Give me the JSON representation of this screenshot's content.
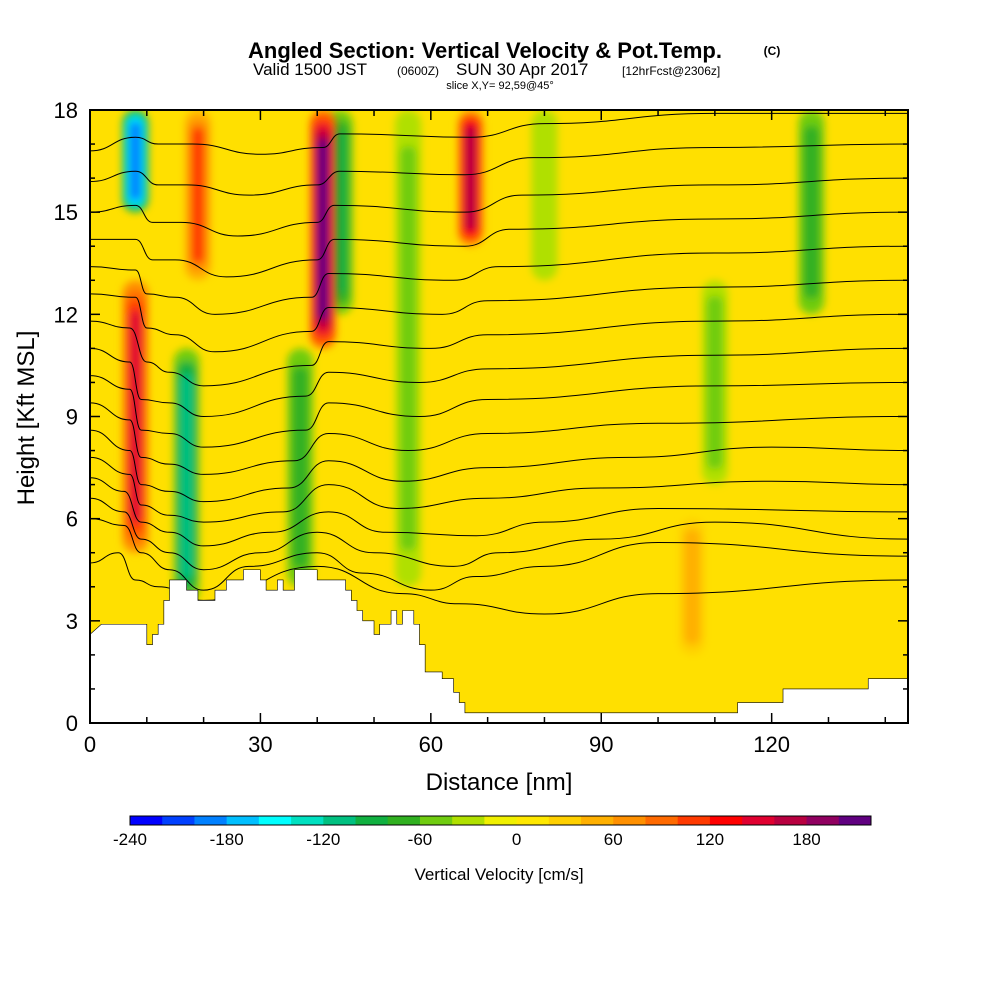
{
  "chart_data": {
    "type": "heatmap",
    "title": "Angled Section: Vertical Velocity & Pot.Temp.",
    "title_unit": "(C)",
    "subtitle_parts": [
      "Valid 1500 JST",
      "(0600Z)",
      "SUN 30 Apr 2017",
      "[12hrFcst@2306z]"
    ],
    "slice_text": "slice X,Y= 92,59@45°",
    "xlabel": "Distance [nm]",
    "ylabel": "Height [Kft MSL]",
    "xlim": [
      0,
      144
    ],
    "ylim": [
      0,
      18
    ],
    "x_ticks": [
      0,
      30,
      60,
      90,
      120
    ],
    "y_ticks": [
      0,
      3,
      6,
      9,
      12,
      15,
      18
    ],
    "colorbar": {
      "label": "Vertical Velocity [cm/s]",
      "ticks": [
        -240,
        -180,
        -120,
        -60,
        0,
        60,
        120,
        180
      ],
      "range": [
        -240,
        220
      ],
      "step": 20,
      "colors": [
        "#0000ff",
        "#0040ff",
        "#0080ff",
        "#00bfff",
        "#00ffff",
        "#00e0c0",
        "#00c080",
        "#10b040",
        "#30b020",
        "#70cc10",
        "#b0e000",
        "#f0f000",
        "#ffe800",
        "#ffd000",
        "#ffb000",
        "#ff9000",
        "#ff6a00",
        "#ff3a00",
        "#ff0000",
        "#e00030",
        "#b80040",
        "#900060",
        "#600080"
      ]
    },
    "updrafts": [
      {
        "x": 8,
        "y_min": 5,
        "y_max": 13,
        "value": 140
      },
      {
        "x": 19,
        "y_min": 13,
        "y_max": 18,
        "value": 100
      },
      {
        "x": 41,
        "y_min": 11,
        "y_max": 18,
        "value": 200
      },
      {
        "x": 67,
        "y_min": 14,
        "y_max": 18,
        "value": 160
      },
      {
        "x": 106,
        "y_min": 2,
        "y_max": 6,
        "value": 50
      }
    ],
    "downdrafts": [
      {
        "x": 8,
        "y_min": 15,
        "y_max": 18,
        "value": -200
      },
      {
        "x": 17,
        "y_min": 3.5,
        "y_max": 11,
        "value": -110
      },
      {
        "x": 37,
        "y_min": 4,
        "y_max": 11,
        "value": -70
      },
      {
        "x": 44,
        "y_min": 12,
        "y_max": 18,
        "value": -90
      },
      {
        "x": 56,
        "y_min": 4,
        "y_max": 18,
        "value": -60
      },
      {
        "x": 80,
        "y_min": 13,
        "y_max": 18,
        "value": -40
      },
      {
        "x": 110,
        "y_min": 7,
        "y_max": 13,
        "value": -50
      },
      {
        "x": 127,
        "y_min": 12,
        "y_max": 18,
        "value": -80
      }
    ],
    "terrain": [
      [
        0,
        2.6
      ],
      [
        2,
        2.9
      ],
      [
        10,
        2.9
      ],
      [
        10,
        2.3
      ],
      [
        11,
        2.3
      ],
      [
        11,
        2.6
      ],
      [
        12,
        2.6
      ],
      [
        12,
        2.9
      ],
      [
        13,
        2.9
      ],
      [
        13,
        3.6
      ],
      [
        14,
        3.6
      ],
      [
        14,
        4.2
      ],
      [
        17,
        4.2
      ],
      [
        17,
        3.9
      ],
      [
        19,
        3.9
      ],
      [
        19,
        3.6
      ],
      [
        22,
        3.6
      ],
      [
        22,
        3.9
      ],
      [
        24,
        3.9
      ],
      [
        24,
        4.2
      ],
      [
        27,
        4.2
      ],
      [
        27,
        4.5
      ],
      [
        30,
        4.5
      ],
      [
        30,
        4.2
      ],
      [
        31,
        4.2
      ],
      [
        31,
        3.9
      ],
      [
        33,
        3.9
      ],
      [
        33,
        4.2
      ],
      [
        34,
        4.2
      ],
      [
        34,
        3.9
      ],
      [
        36,
        3.9
      ],
      [
        36,
        4.5
      ],
      [
        40,
        4.5
      ],
      [
        40,
        4.2
      ],
      [
        45,
        4.2
      ],
      [
        45,
        3.9
      ],
      [
        46,
        3.9
      ],
      [
        46,
        3.6
      ],
      [
        47,
        3.6
      ],
      [
        47,
        3.3
      ],
      [
        48,
        3.3
      ],
      [
        48,
        3.0
      ],
      [
        50,
        3.0
      ],
      [
        50,
        2.6
      ],
      [
        51,
        2.6
      ],
      [
        51,
        2.9
      ],
      [
        53,
        2.9
      ],
      [
        53,
        3.3
      ],
      [
        54,
        3.3
      ],
      [
        54,
        2.9
      ],
      [
        55,
        2.9
      ],
      [
        55,
        3.3
      ],
      [
        57,
        3.3
      ],
      [
        57,
        2.9
      ],
      [
        58,
        2.9
      ],
      [
        58,
        2.3
      ],
      [
        59,
        2.3
      ],
      [
        59,
        1.5
      ],
      [
        62,
        1.5
      ],
      [
        62,
        1.3
      ],
      [
        64,
        1.3
      ],
      [
        64,
        0.9
      ],
      [
        65,
        0.9
      ],
      [
        65,
        0.6
      ],
      [
        66,
        0.6
      ],
      [
        66,
        0.3
      ],
      [
        114,
        0.3
      ],
      [
        114,
        0.6
      ],
      [
        122,
        0.6
      ],
      [
        122,
        1.0
      ],
      [
        137,
        1.0
      ],
      [
        137,
        1.3
      ],
      [
        144,
        1.3
      ],
      [
        144,
        0
      ],
      [
        0,
        0
      ]
    ],
    "isentropes": [
      {
        "label": "",
        "pts": [
          [
            0,
            4.7
          ],
          [
            5,
            5.0
          ],
          [
            8,
            4.2
          ],
          [
            12,
            4.0
          ],
          [
            20,
            3.6
          ],
          [
            40,
            4.6
          ],
          [
            55,
            3.8
          ],
          [
            65,
            3.5
          ],
          [
            80,
            3.2
          ],
          [
            100,
            3.8
          ],
          [
            144,
            4.2
          ]
        ]
      },
      {
        "label": "",
        "pts": [
          [
            0,
            6.0
          ],
          [
            6,
            5.8
          ],
          [
            9,
            5.0
          ],
          [
            14,
            4.5
          ],
          [
            20,
            3.9
          ],
          [
            28,
            4.6
          ],
          [
            40,
            5.0
          ],
          [
            48,
            4.4
          ],
          [
            60,
            3.9
          ],
          [
            68,
            4.3
          ],
          [
            80,
            4.6
          ],
          [
            100,
            5.3
          ],
          [
            144,
            4.9
          ]
        ]
      },
      {
        "label": "",
        "pts": [
          [
            0,
            6.6
          ],
          [
            6,
            6.2
          ],
          [
            9,
            5.4
          ],
          [
            14,
            5.0
          ],
          [
            20,
            4.5
          ],
          [
            30,
            5.0
          ],
          [
            40,
            5.6
          ],
          [
            50,
            5.0
          ],
          [
            64,
            4.6
          ],
          [
            72,
            5.0
          ],
          [
            90,
            5.4
          ],
          [
            110,
            5.9
          ],
          [
            144,
            5.4
          ]
        ]
      },
      {
        "label": "",
        "pts": [
          [
            0,
            7.2
          ],
          [
            6,
            6.8
          ],
          [
            9,
            5.9
          ],
          [
            14,
            5.6
          ],
          [
            20,
            5.2
          ],
          [
            32,
            5.6
          ],
          [
            42,
            6.2
          ],
          [
            52,
            5.6
          ],
          [
            68,
            5.5
          ],
          [
            80,
            5.9
          ],
          [
            100,
            6.3
          ],
          [
            144,
            6.2
          ]
        ]
      },
      {
        "label": "",
        "pts": [
          [
            0,
            7.8
          ],
          [
            7,
            7.3
          ],
          [
            9,
            6.4
          ],
          [
            14,
            6.1
          ],
          [
            20,
            5.9
          ],
          [
            34,
            6.2
          ],
          [
            42,
            7.0
          ],
          [
            54,
            6.3
          ],
          [
            70,
            6.6
          ],
          [
            90,
            6.9
          ],
          [
            120,
            7.1
          ],
          [
            144,
            7.0
          ]
        ]
      },
      {
        "label": "",
        "pts": [
          [
            0,
            8.6
          ],
          [
            7,
            8.0
          ],
          [
            9,
            7.0
          ],
          [
            14,
            6.8
          ],
          [
            20,
            6.5
          ],
          [
            35,
            6.9
          ],
          [
            42,
            7.7
          ],
          [
            55,
            7.1
          ],
          [
            70,
            7.5
          ],
          [
            95,
            7.8
          ],
          [
            120,
            8.1
          ],
          [
            144,
            8.0
          ]
        ]
      },
      {
        "label": "",
        "pts": [
          [
            0,
            9.4
          ],
          [
            7,
            8.9
          ],
          [
            9,
            7.8
          ],
          [
            14,
            7.6
          ],
          [
            20,
            7.3
          ],
          [
            36,
            7.7
          ],
          [
            42,
            8.5
          ],
          [
            56,
            8.0
          ],
          [
            70,
            8.5
          ],
          [
            100,
            8.8
          ],
          [
            144,
            9.0
          ]
        ]
      },
      {
        "label": "",
        "pts": [
          [
            0,
            10.2
          ],
          [
            7,
            9.8
          ],
          [
            9,
            8.6
          ],
          [
            14,
            8.5
          ],
          [
            20,
            8.1
          ],
          [
            38,
            8.6
          ],
          [
            42,
            9.4
          ],
          [
            58,
            9.0
          ],
          [
            70,
            9.5
          ],
          [
            110,
            9.9
          ],
          [
            144,
            10.0
          ]
        ]
      },
      {
        "label": "",
        "pts": [
          [
            0,
            11.0
          ],
          [
            7,
            10.6
          ],
          [
            9,
            9.5
          ],
          [
            14,
            9.4
          ],
          [
            20,
            9.0
          ],
          [
            38,
            9.6
          ],
          [
            42,
            10.3
          ],
          [
            58,
            10.0
          ],
          [
            70,
            10.4
          ],
          [
            110,
            10.8
          ],
          [
            144,
            11.0
          ]
        ]
      },
      {
        "label": "",
        "pts": [
          [
            0,
            11.8
          ],
          [
            7,
            11.6
          ],
          [
            10,
            10.6
          ],
          [
            14,
            10.3
          ],
          [
            20,
            9.9
          ],
          [
            39,
            10.5
          ],
          [
            42,
            11.2
          ],
          [
            60,
            11.0
          ],
          [
            70,
            11.4
          ],
          [
            110,
            11.8
          ],
          [
            144,
            12.0
          ]
        ]
      },
      {
        "label": "",
        "pts": [
          [
            0,
            12.6
          ],
          [
            8,
            12.5
          ],
          [
            10,
            11.6
          ],
          [
            15,
            11.4
          ],
          [
            22,
            10.9
          ],
          [
            39,
            11.5
          ],
          [
            42,
            12.2
          ],
          [
            62,
            12.0
          ],
          [
            70,
            12.4
          ],
          [
            110,
            12.8
          ],
          [
            144,
            13.0
          ]
        ]
      },
      {
        "label": "",
        "pts": [
          [
            0,
            13.4
          ],
          [
            8,
            13.3
          ],
          [
            10,
            12.6
          ],
          [
            15,
            12.5
          ],
          [
            22,
            12.0
          ],
          [
            39,
            12.5
          ],
          [
            42,
            13.2
          ],
          [
            64,
            13.0
          ],
          [
            72,
            13.4
          ],
          [
            110,
            13.8
          ],
          [
            144,
            14.0
          ]
        ]
      },
      {
        "label": "",
        "pts": [
          [
            0,
            14.2
          ],
          [
            8,
            14.2
          ],
          [
            11,
            13.6
          ],
          [
            15,
            13.6
          ],
          [
            24,
            13.1
          ],
          [
            40,
            13.6
          ],
          [
            43,
            14.2
          ],
          [
            66,
            14.0
          ],
          [
            74,
            14.5
          ],
          [
            110,
            14.8
          ],
          [
            144,
            15.0
          ]
        ]
      },
      {
        "label": "",
        "pts": [
          [
            0,
            15.0
          ],
          [
            8,
            15.2
          ],
          [
            11,
            14.7
          ],
          [
            16,
            14.7
          ],
          [
            26,
            14.3
          ],
          [
            40,
            14.7
          ],
          [
            43,
            15.2
          ],
          [
            66,
            15.0
          ],
          [
            76,
            15.5
          ],
          [
            110,
            15.8
          ],
          [
            144,
            16.0
          ]
        ]
      },
      {
        "label": "",
        "pts": [
          [
            0,
            15.9
          ],
          [
            8,
            16.2
          ],
          [
            12,
            15.8
          ],
          [
            17,
            15.8
          ],
          [
            28,
            15.5
          ],
          [
            40,
            15.8
          ],
          [
            44,
            16.2
          ],
          [
            66,
            16.1
          ],
          [
            78,
            16.6
          ],
          [
            110,
            16.9
          ],
          [
            144,
            17.0
          ]
        ]
      },
      {
        "label": "",
        "pts": [
          [
            0,
            16.8
          ],
          [
            8,
            17.2
          ],
          [
            12,
            17.0
          ],
          [
            18,
            17.0
          ],
          [
            30,
            16.7
          ],
          [
            41,
            16.9
          ],
          [
            44,
            17.3
          ],
          [
            67,
            17.2
          ],
          [
            80,
            17.6
          ],
          [
            110,
            17.9
          ],
          [
            144,
            17.9
          ]
        ]
      }
    ]
  }
}
